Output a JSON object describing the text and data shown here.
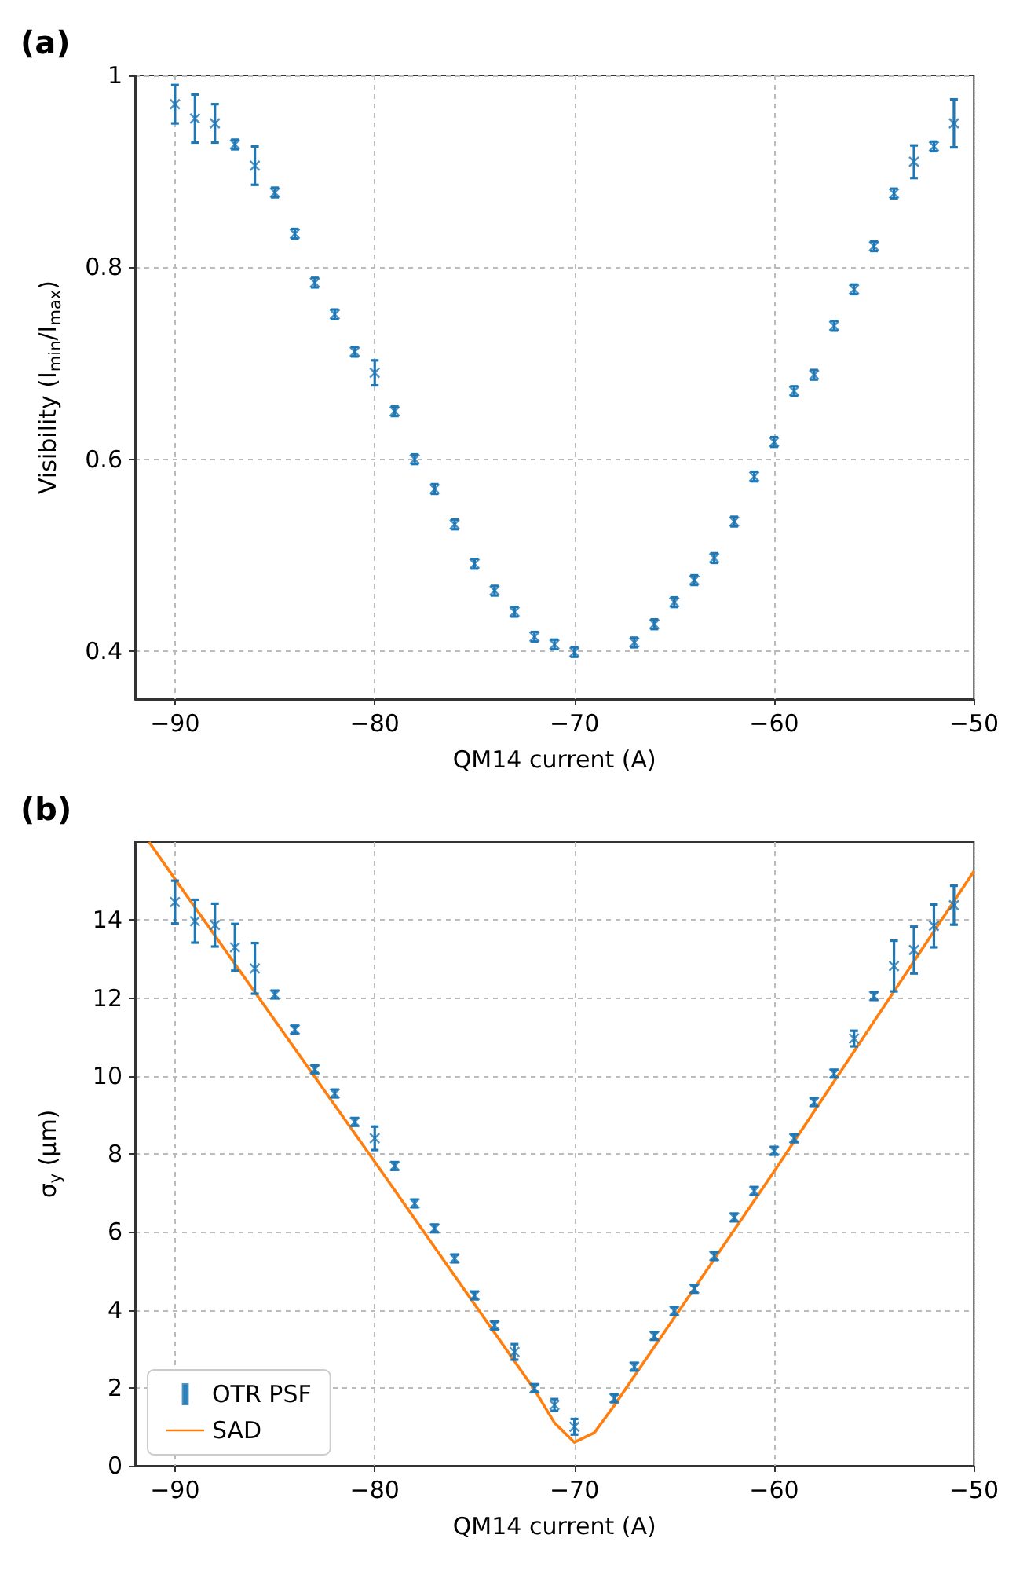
{
  "chart_data": [
    {
      "type": "scatter",
      "title": "(a)",
      "xlabel": "QM14 current (A)",
      "ylabel": "Visibility (I$_{min}$/I$_{max}$)",
      "xlim": [
        -92,
        -50
      ],
      "xticks": [
        -90,
        -80,
        -70,
        -60,
        -50
      ],
      "ylim": [
        0.35,
        1.0
      ],
      "yticks": [
        0.4,
        0.6,
        0.8,
        1.0
      ],
      "grid": true,
      "marker": "cross",
      "series": [
        {
          "color": "#1f77b4",
          "x": [
            -90,
            -89,
            -88,
            -87,
            -86,
            -85,
            -84,
            -83,
            -82,
            -81,
            -80,
            -79,
            -78,
            -77,
            -76,
            -75,
            -74,
            -73,
            -72,
            -71,
            -70,
            -67,
            -66,
            -65,
            -64,
            -63,
            -62,
            -61,
            -60,
            -59,
            -58,
            -57,
            -56,
            -55,
            -54,
            -53,
            -52,
            -51
          ],
          "values": [
            0.97,
            0.955,
            0.95,
            0.928,
            0.906,
            0.878,
            0.835,
            0.784,
            0.751,
            0.712,
            0.69,
            0.65,
            0.6,
            0.569,
            0.532,
            0.491,
            0.463,
            0.441,
            0.415,
            0.407,
            0.399,
            0.409,
            0.428,
            0.451,
            0.474,
            0.497,
            0.535,
            0.582,
            0.618,
            0.671,
            0.688,
            0.739,
            0.777,
            0.822,
            0.877,
            0.91,
            0.926,
            0.95
          ],
          "errors": [
            0.02,
            0.025,
            0.02,
            0.005,
            0.02,
            0.005,
            0.005,
            0.005,
            0.005,
            0.005,
            0.013,
            0.005,
            0.005,
            0.005,
            0.005,
            0.005,
            0.005,
            0.005,
            0.005,
            0.005,
            0.005,
            0.005,
            0.005,
            0.005,
            0.005,
            0.005,
            0.005,
            0.005,
            0.005,
            0.005,
            0.005,
            0.005,
            0.005,
            0.005,
            0.005,
            0.017,
            0.005,
            0.025
          ]
        }
      ]
    },
    {
      "type": "scatter",
      "title": "(b)",
      "xlabel": "QM14 current (A)",
      "ylabel": "σ$_{y}$ (μm)",
      "xlim": [
        -92,
        -50
      ],
      "xticks": [
        -90,
        -80,
        -70,
        -60,
        -50
      ],
      "ylim": [
        0,
        16
      ],
      "yticks": [
        0,
        2,
        4,
        6,
        8,
        10,
        12,
        14
      ],
      "grid": true,
      "marker": "cross",
      "legend": "bottom left",
      "series": [
        {
          "name": "OTR PSF",
          "color": "#1f77b4",
          "x": [
            -90,
            -89,
            -88,
            -87,
            -86,
            -85,
            -84,
            -83,
            -82,
            -81,
            -80,
            -79,
            -78,
            -77,
            -76,
            -75,
            -74,
            -73,
            -72,
            -71,
            -70,
            -68,
            -67,
            -66,
            -65,
            -64,
            -63,
            -62,
            -61,
            -60,
            -59,
            -58,
            -57,
            -56,
            -55,
            -54,
            -53,
            -52,
            -51
          ],
          "values": [
            14.46,
            13.97,
            13.87,
            13.3,
            12.76,
            12.09,
            11.19,
            10.17,
            9.55,
            8.82,
            8.4,
            7.69,
            6.73,
            6.09,
            5.32,
            4.37,
            3.6,
            2.92,
            1.99,
            1.56,
            1.0,
            1.73,
            2.54,
            3.33,
            3.97,
            4.54,
            5.38,
            6.37,
            7.05,
            8.08,
            8.4,
            9.33,
            10.06,
            10.96,
            12.05,
            12.82,
            13.23,
            13.85,
            14.38
          ],
          "errors": [
            0.55,
            0.55,
            0.55,
            0.6,
            0.65,
            0.1,
            0.1,
            0.1,
            0.1,
            0.1,
            0.3,
            0.1,
            0.1,
            0.1,
            0.1,
            0.1,
            0.1,
            0.2,
            0.1,
            0.15,
            0.2,
            0.1,
            0.1,
            0.1,
            0.1,
            0.1,
            0.1,
            0.1,
            0.1,
            0.1,
            0.1,
            0.1,
            0.1,
            0.2,
            0.1,
            0.65,
            0.6,
            0.55,
            0.5
          ]
        },
        {
          "name": "SAD",
          "type": "line",
          "color": "#ff7f0e",
          "marker": "none",
          "x": [
            -91.3,
            -90,
            -80,
            -72,
            -71,
            -70,
            -69,
            -68,
            -60,
            -50
          ],
          "values": [
            16,
            15.05,
            7.8,
            1.95,
            1.1,
            0.6,
            0.85,
            1.55,
            7.55,
            15.25
          ]
        }
      ]
    }
  ]
}
